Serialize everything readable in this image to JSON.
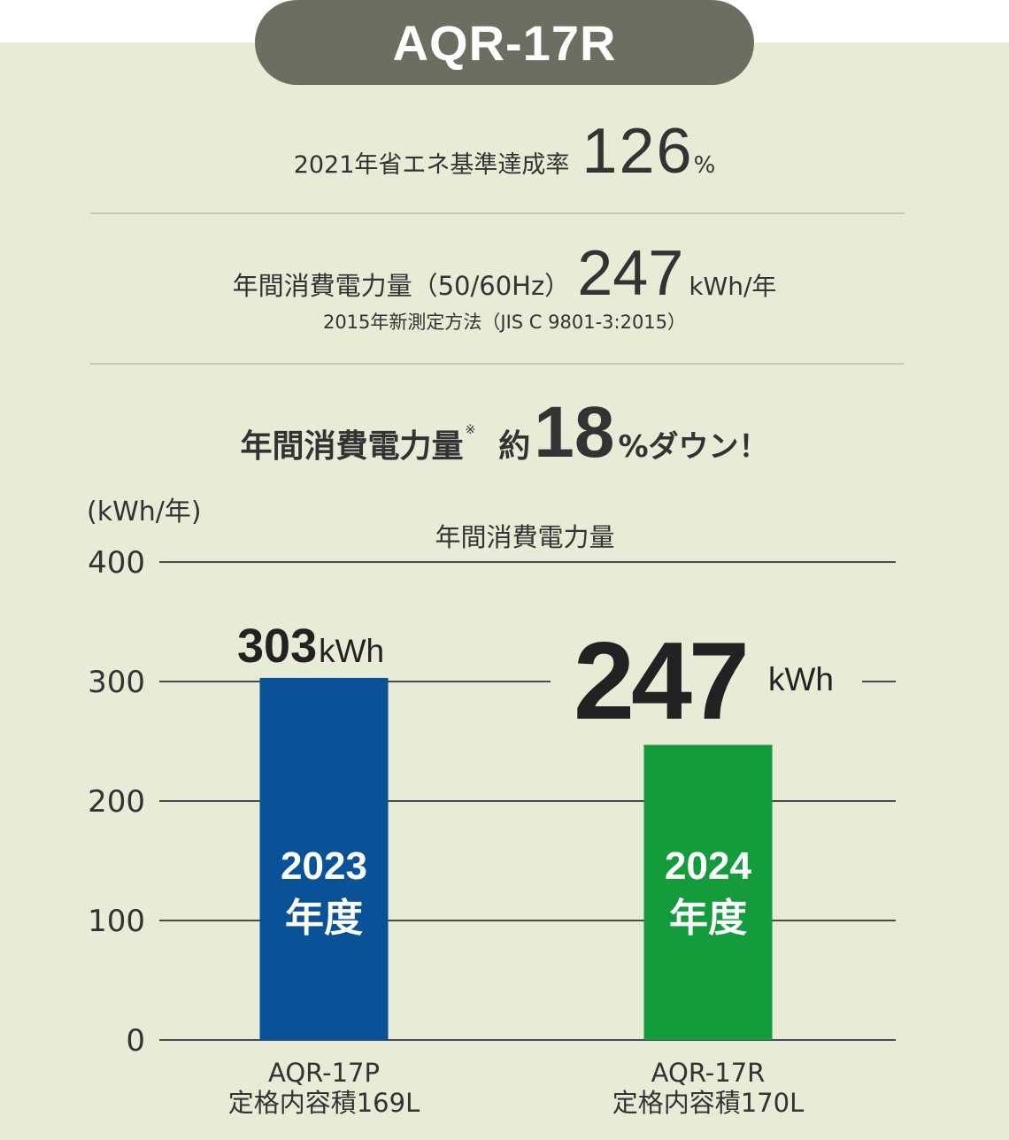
{
  "header": {
    "model": "AQR-17R"
  },
  "achievement": {
    "label": "2021年省エネ基準達成率",
    "value": "126",
    "unit": "%"
  },
  "annual": {
    "label": "年間消費電力量（50/60Hz）",
    "value": "247",
    "unit": "kWh/年",
    "method": "2015年新測定方法（JIS C 9801-3:2015）"
  },
  "reduction": {
    "label": "年間消費電力量",
    "note_mark": "※",
    "prefix": "約",
    "value": "18",
    "suffix": "%ダウン！"
  },
  "chart_data": {
    "type": "bar",
    "title": "年間消費電力量",
    "ylabel": "(kWh/年)",
    "ylim": [
      0,
      400
    ],
    "yticks": [
      "0",
      "100",
      "200",
      "300",
      "400"
    ],
    "grid": true,
    "categories": [
      {
        "model": "AQR-17P",
        "capacity": "定格内容積169L",
        "year": "2023",
        "year_unit": "年度"
      },
      {
        "model": "AQR-17R",
        "capacity": "定格内容積170L",
        "year": "2024",
        "year_unit": "年度"
      }
    ],
    "values": [
      303,
      247
    ],
    "value_labels": [
      "303",
      "247"
    ],
    "value_unit": "kWh",
    "colors": [
      "#0a5298",
      "#139b3c"
    ]
  }
}
